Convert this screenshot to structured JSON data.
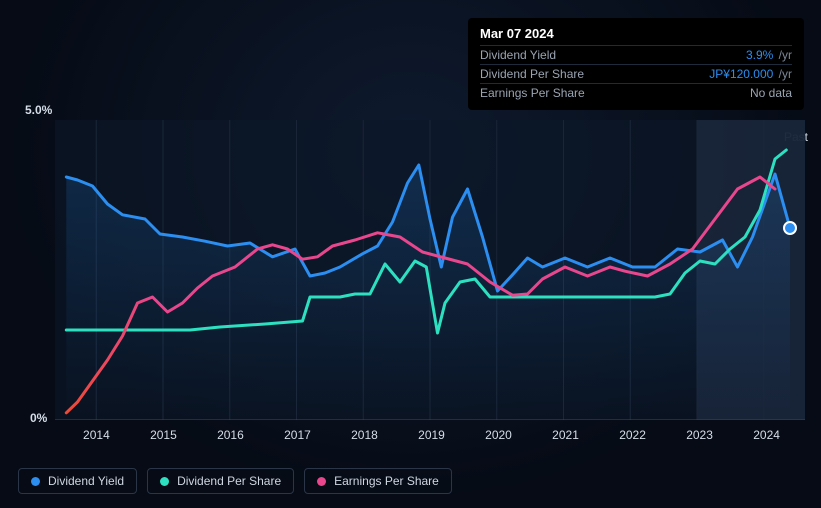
{
  "tooltip": {
    "date": "Mar 07 2024",
    "rows": [
      {
        "label": "Dividend Yield",
        "value": "3.9%",
        "unit": "/yr",
        "highlight": true
      },
      {
        "label": "Dividend Per Share",
        "value": "JP¥120.000",
        "unit": "/yr",
        "highlight": true
      },
      {
        "label": "Earnings Per Share",
        "value": "No data",
        "unit": "",
        "highlight": false
      }
    ]
  },
  "chart": {
    "type": "line",
    "y_top_label": "5.0%",
    "y_bottom_label": "0%",
    "past_label": "Past",
    "x_labels": [
      "2014",
      "2015",
      "2016",
      "2017",
      "2018",
      "2019",
      "2020",
      "2021",
      "2022",
      "2023",
      "2024"
    ],
    "x_positions_pct": [
      5.5,
      14.4,
      23.3,
      32.2,
      41.1,
      50.0,
      58.9,
      67.8,
      76.7,
      85.6,
      94.5
    ],
    "ylim": [
      0,
      5
    ],
    "background_fill": "#0b1728",
    "highlight_band": {
      "x_start_pct": 85.6,
      "x_end_pct": 100,
      "fill": "#19263a"
    },
    "series": [
      {
        "name": "Dividend Yield",
        "color": "#2b8ef0",
        "stroke_width": 3,
        "fill_opacity": 0.08,
        "points": [
          [
            1.5,
            4.05
          ],
          [
            3,
            4.0
          ],
          [
            5,
            3.9
          ],
          [
            7,
            3.6
          ],
          [
            9,
            3.42
          ],
          [
            12,
            3.35
          ],
          [
            14,
            3.1
          ],
          [
            17,
            3.05
          ],
          [
            20,
            2.98
          ],
          [
            23,
            2.9
          ],
          [
            26,
            2.95
          ],
          [
            29,
            2.72
          ],
          [
            32,
            2.85
          ],
          [
            34,
            2.4
          ],
          [
            36,
            2.45
          ],
          [
            38,
            2.55
          ],
          [
            41,
            2.77
          ],
          [
            43,
            2.9
          ],
          [
            45,
            3.3
          ],
          [
            47,
            3.95
          ],
          [
            48.5,
            4.25
          ],
          [
            50,
            3.35
          ],
          [
            51.5,
            2.55
          ],
          [
            53,
            3.38
          ],
          [
            55,
            3.85
          ],
          [
            57,
            3.05
          ],
          [
            59,
            2.15
          ],
          [
            61,
            2.42
          ],
          [
            63,
            2.7
          ],
          [
            65,
            2.55
          ],
          [
            68,
            2.7
          ],
          [
            71,
            2.55
          ],
          [
            74,
            2.7
          ],
          [
            77,
            2.55
          ],
          [
            80,
            2.55
          ],
          [
            83,
            2.85
          ],
          [
            86,
            2.8
          ],
          [
            89,
            3.0
          ],
          [
            91,
            2.55
          ],
          [
            93,
            3.05
          ],
          [
            96,
            4.1
          ],
          [
            98,
            3.2
          ]
        ]
      },
      {
        "name": "Dividend Per Share",
        "color": "#2ce0c0",
        "stroke_width": 3,
        "fill_opacity": 0,
        "points": [
          [
            1.5,
            1.5
          ],
          [
            18,
            1.5
          ],
          [
            22,
            1.55
          ],
          [
            28,
            1.6
          ],
          [
            33,
            1.65
          ],
          [
            34,
            2.05
          ],
          [
            38,
            2.05
          ],
          [
            40,
            2.1
          ],
          [
            42,
            2.1
          ],
          [
            44,
            2.6
          ],
          [
            46,
            2.3
          ],
          [
            48,
            2.65
          ],
          [
            49.5,
            2.55
          ],
          [
            51,
            1.45
          ],
          [
            52,
            1.95
          ],
          [
            54,
            2.3
          ],
          [
            56,
            2.35
          ],
          [
            58,
            2.05
          ],
          [
            66,
            2.05
          ],
          [
            80,
            2.05
          ],
          [
            82,
            2.1
          ],
          [
            84,
            2.45
          ],
          [
            86,
            2.65
          ],
          [
            88,
            2.6
          ],
          [
            90,
            2.85
          ],
          [
            92,
            3.05
          ],
          [
            94,
            3.5
          ],
          [
            96,
            4.35
          ],
          [
            97.5,
            4.5
          ]
        ]
      },
      {
        "name": "Earnings Per Share",
        "color": "#e8468d",
        "gradient_from": "#f04933",
        "stroke_width": 3,
        "fill_opacity": 0,
        "points": [
          [
            1.5,
            0.12
          ],
          [
            3,
            0.3
          ],
          [
            5,
            0.65
          ],
          [
            7,
            1.0
          ],
          [
            9,
            1.4
          ],
          [
            11,
            1.95
          ],
          [
            13,
            2.05
          ],
          [
            15,
            1.8
          ],
          [
            17,
            1.95
          ],
          [
            19,
            2.2
          ],
          [
            21,
            2.4
          ],
          [
            24,
            2.55
          ],
          [
            27,
            2.85
          ],
          [
            29,
            2.92
          ],
          [
            31,
            2.85
          ],
          [
            33,
            2.68
          ],
          [
            35,
            2.72
          ],
          [
            37,
            2.9
          ],
          [
            40,
            3.0
          ],
          [
            43,
            3.12
          ],
          [
            46,
            3.05
          ],
          [
            49,
            2.8
          ],
          [
            52,
            2.7
          ],
          [
            55,
            2.6
          ],
          [
            58,
            2.3
          ],
          [
            61,
            2.08
          ],
          [
            63,
            2.1
          ],
          [
            65,
            2.35
          ],
          [
            68,
            2.55
          ],
          [
            71,
            2.4
          ],
          [
            74,
            2.55
          ],
          [
            76,
            2.48
          ],
          [
            79,
            2.4
          ],
          [
            82,
            2.6
          ],
          [
            85,
            2.85
          ],
          [
            88,
            3.35
          ],
          [
            91,
            3.85
          ],
          [
            94,
            4.05
          ],
          [
            96,
            3.85
          ]
        ]
      }
    ]
  },
  "legend": [
    {
      "label": "Dividend Yield",
      "color": "#2b8ef0"
    },
    {
      "label": "Dividend Per Share",
      "color": "#2ce0c0"
    },
    {
      "label": "Earnings Per Share",
      "color": "#e8468d"
    }
  ]
}
